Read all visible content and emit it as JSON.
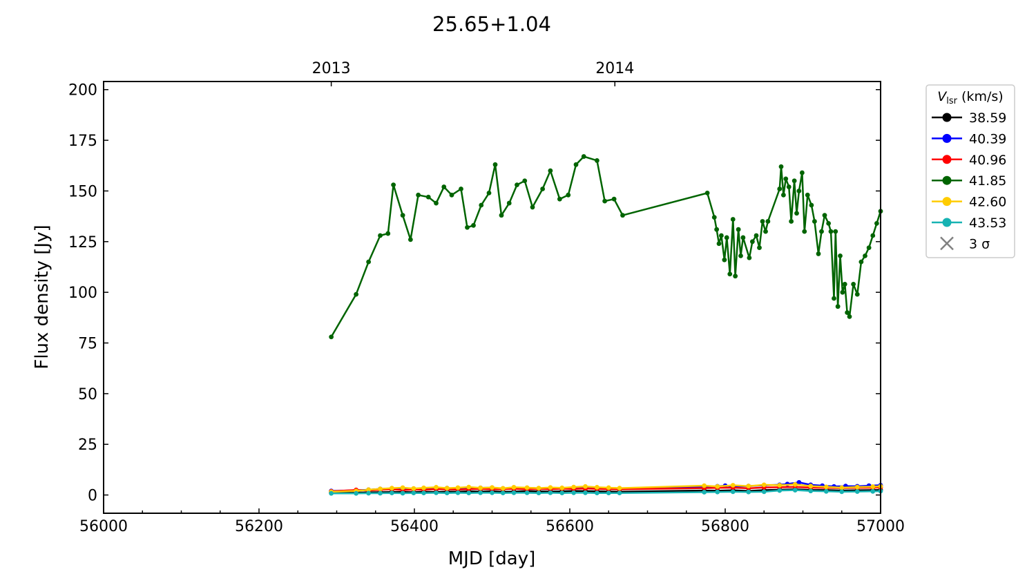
{
  "chart_data": {
    "type": "line",
    "title": "25.65+1.04",
    "xlabel": "MJD [day]",
    "ylabel": "Flux density [Jy]",
    "xlim": [
      56000,
      57000
    ],
    "ylim": [
      -9,
      204
    ],
    "xticks": [
      56000,
      56200,
      56400,
      56600,
      56800,
      57000
    ],
    "yticks": [
      0,
      25,
      50,
      75,
      100,
      125,
      150,
      175,
      200
    ],
    "top_axis": {
      "ticks": [
        {
          "x": 56293,
          "label": "2013"
        },
        {
          "x": 56658,
          "label": "2014"
        }
      ]
    },
    "legend": {
      "title_main": "V",
      "title_sub": "lsr",
      "title_unit": " (km/s)",
      "placement": "upper right, outside axes",
      "sigma_label": "3 σ",
      "sigma_color": "#808080"
    },
    "grid": false,
    "series": [
      {
        "name": "38.59",
        "color": "#000000",
        "x": [
          56293,
          56325,
          56341,
          56356,
          56371,
          56385,
          56399,
          56412,
          56428,
          56442,
          56456,
          56470,
          56485,
          56500,
          56514,
          56528,
          56545,
          56560,
          56575,
          56590,
          56605,
          56620,
          56635,
          56650,
          56664,
          56773,
          56790,
          56810,
          56830,
          56850,
          56870,
          56890,
          56910,
          56930,
          56950,
          56970,
          56990,
          57000
        ],
        "y": [
          1.2,
          1.2,
          1.3,
          1.4,
          1.5,
          1.5,
          1.4,
          1.6,
          1.5,
          1.7,
          1.6,
          1.8,
          1.7,
          1.8,
          1.6,
          1.7,
          1.9,
          1.8,
          1.7,
          1.8,
          2.0,
          1.9,
          1.8,
          1.7,
          1.6,
          2.2,
          2.1,
          2.3,
          2.0,
          2.4,
          2.6,
          2.8,
          2.5,
          2.4,
          2.2,
          2.3,
          2.4,
          2.5
        ]
      },
      {
        "name": "40.39",
        "color": "#0000ff",
        "x": [
          56293,
          56325,
          56341,
          56356,
          56371,
          56385,
          56399,
          56412,
          56428,
          56442,
          56456,
          56470,
          56485,
          56500,
          56514,
          56528,
          56545,
          56560,
          56575,
          56590,
          56605,
          56620,
          56635,
          56650,
          56664,
          56773,
          56790,
          56800,
          56810,
          56830,
          56850,
          56870,
          56880,
          56895,
          56910,
          56925,
          56940,
          56955,
          56970,
          56985,
          57000
        ],
        "y": [
          2.0,
          2.3,
          2.6,
          3.0,
          3.2,
          2.8,
          3.1,
          3.0,
          3.3,
          3.4,
          3.2,
          3.3,
          3.5,
          3.6,
          3.2,
          3.4,
          3.5,
          3.3,
          3.4,
          3.2,
          3.5,
          3.4,
          3.2,
          3.1,
          3.0,
          4.1,
          4.3,
          4.6,
          4.2,
          4.4,
          4.8,
          5.0,
          5.4,
          6.2,
          5.0,
          4.6,
          4.2,
          4.4,
          4.3,
          4.6,
          4.8
        ]
      },
      {
        "name": "40.96",
        "color": "#ff0000",
        "x": [
          56293,
          56325,
          56341,
          56356,
          56371,
          56385,
          56399,
          56412,
          56428,
          56442,
          56456,
          56470,
          56485,
          56500,
          56514,
          56528,
          56545,
          56560,
          56575,
          56590,
          56605,
          56620,
          56635,
          56650,
          56664,
          56773,
          56790,
          56810,
          56830,
          56850,
          56870,
          56890,
          56910,
          56930,
          56950,
          56970,
          56990,
          57000
        ],
        "y": [
          1.8,
          2.5,
          2.2,
          2.6,
          2.8,
          2.4,
          2.7,
          2.6,
          2.9,
          2.8,
          2.7,
          2.9,
          3.0,
          2.8,
          2.9,
          3.1,
          2.8,
          3.0,
          2.9,
          3.1,
          3.0,
          3.2,
          3.0,
          2.9,
          2.8,
          3.4,
          3.5,
          3.6,
          3.3,
          3.7,
          3.8,
          4.0,
          3.6,
          3.5,
          3.4,
          3.5,
          3.6,
          3.7
        ]
      },
      {
        "name": "41.85",
        "color": "#006400",
        "x": [
          56293,
          56325,
          56341,
          56356,
          56366,
          56373,
          56385,
          56395,
          56405,
          56418,
          56428,
          56438,
          56448,
          56460,
          56468,
          56476,
          56486,
          56496,
          56504,
          56512,
          56522,
          56532,
          56542,
          56552,
          56565,
          56575,
          56587,
          56598,
          56608,
          56618,
          56635,
          56645,
          56657,
          56668,
          56777,
          56786,
          56789,
          56792,
          56795,
          56799,
          56802,
          56806,
          56810,
          56813,
          56817,
          56820,
          56823,
          56831,
          56835,
          56840,
          56844,
          56848,
          56852,
          56855,
          56870,
          56872,
          56875,
          56878,
          56882,
          56885,
          56889,
          56892,
          56895,
          56899,
          56902,
          56906,
          56911,
          56915,
          56920,
          56924,
          56928,
          56933,
          56936,
          56940,
          56942,
          56945,
          56948,
          56951,
          56954,
          56957,
          56960,
          56965,
          56970,
          56975,
          56980,
          56985,
          56990,
          56995,
          57000
        ],
        "y": [
          78,
          99,
          115,
          128,
          129,
          153,
          138,
          126,
          148,
          147,
          144,
          152,
          148,
          151,
          132,
          133,
          143,
          149,
          163,
          138,
          144,
          153,
          155,
          142,
          151,
          160,
          146,
          148,
          163,
          167,
          165,
          145,
          146,
          138,
          149,
          137,
          131,
          124,
          128,
          116,
          127,
          109,
          136,
          108,
          131,
          118,
          127,
          117,
          125,
          128,
          122,
          135,
          130,
          135,
          151,
          162,
          148,
          156,
          152,
          135,
          155,
          139,
          150,
          159,
          130,
          148,
          143,
          135,
          119,
          130,
          138,
          134,
          130,
          97,
          130,
          93,
          118,
          100,
          104,
          90,
          88,
          104,
          99,
          115,
          118,
          122,
          128,
          134,
          140
        ]
      },
      {
        "name": "42.60",
        "color": "#ffcc00",
        "x": [
          56293,
          56325,
          56341,
          56356,
          56371,
          56385,
          56399,
          56412,
          56428,
          56442,
          56456,
          56470,
          56485,
          56500,
          56514,
          56528,
          56545,
          56560,
          56575,
          56590,
          56605,
          56620,
          56635,
          56650,
          56664,
          56773,
          56790,
          56810,
          56830,
          56850,
          56870,
          56890,
          56910,
          56930,
          56950,
          56970,
          56990,
          57000
        ],
        "y": [
          1.6,
          2.0,
          2.6,
          3.0,
          3.4,
          3.6,
          3.2,
          3.5,
          3.8,
          3.4,
          3.6,
          3.9,
          3.5,
          3.7,
          3.3,
          3.8,
          3.6,
          3.4,
          3.7,
          3.5,
          3.9,
          4.2,
          3.8,
          3.6,
          3.4,
          4.6,
          4.2,
          4.8,
          4.4,
          5.0,
          4.8,
          5.2,
          4.4,
          4.0,
          3.6,
          3.9,
          4.1,
          4.3
        ]
      },
      {
        "name": "43.53",
        "color": "#17b3b3",
        "x": [
          56293,
          56325,
          56341,
          56356,
          56371,
          56385,
          56399,
          56412,
          56428,
          56442,
          56456,
          56470,
          56485,
          56500,
          56514,
          56528,
          56545,
          56560,
          56575,
          56590,
          56605,
          56620,
          56635,
          56650,
          56664,
          56773,
          56790,
          56810,
          56830,
          56850,
          56870,
          56890,
          56910,
          56930,
          56950,
          56970,
          56990,
          57000
        ],
        "y": [
          0.8,
          0.8,
          0.9,
          0.9,
          1.0,
          0.9,
          1.0,
          1.0,
          1.1,
          1.0,
          1.1,
          1.0,
          1.1,
          1.1,
          1.0,
          1.1,
          1.1,
          1.0,
          1.1,
          1.0,
          1.1,
          1.1,
          1.0,
          1.0,
          1.0,
          1.4,
          1.5,
          1.6,
          1.5,
          1.6,
          2.2,
          2.4,
          2.0,
          1.8,
          1.6,
          1.7,
          1.8,
          1.9
        ]
      }
    ]
  }
}
